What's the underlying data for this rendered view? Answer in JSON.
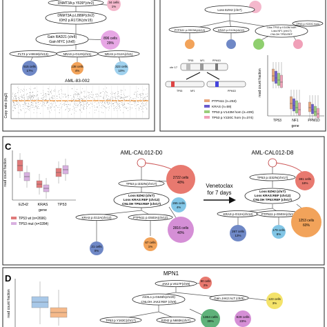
{
  "figure": {
    "panels": {
      "c_label": "C",
      "d_label": "D"
    },
    "top_left": {
      "mut1": "DNMT3A p.Y639*(chr2)",
      "c1": "34 cells",
      "p1": "1%",
      "mut2a": "DNMT3A p.L889P(chr2)",
      "mut2b": "IDH2 p.R172K(chr15)",
      "mut3a": "Gain RAD21 (chr8)",
      "mut3b": "Gain MYC (chr8)",
      "c3": "896 cells",
      "p3": "29%",
      "mut4": "FLT3 p.V491M(chr13)",
      "mut5": "NRAS p.G12S(chr1)",
      "mut6": "NRAS p.G12A(chr1)",
      "c4": "515 cells",
      "p4": "17%",
      "c5": "138 cells",
      "p5": "4%",
      "c6": "323 cells",
      "p6": "10%",
      "sample": "AML-83-002",
      "ylabel": "Copy ratio (log2)"
    },
    "top_right": {
      "mut1": "Loss EZH2 (chr7)",
      "mut2": "PTPN11 p.G503A(chr12)",
      "mut3": "KRAS p.G12A(chr12)",
      "mut4a": "Loss TP53 p.V143M hom",
      "mut4b": "Loss NF1 (chr17)",
      "mut4c": "CNLOH TP53:REF",
      "mut5": "TP53 p.Y220C hom",
      "chr": "chr 17",
      "genes_top": [
        "TP53",
        "NF1",
        "PPM1D"
      ],
      "genes_bottom": [
        "TP53",
        "NF1",
        "PPM1D"
      ],
      "ylabel": "read count fraction",
      "xlabel": "gene",
      "xticks": [
        "TP53",
        "NF1",
        "PPM1D"
      ],
      "legend": [
        {
          "label": "PTPN11 (n=253)",
          "color": "#e8a57a"
        },
        {
          "label": "KRAS (n=59)",
          "color": "#6a5acd"
        },
        {
          "label": "TP53 p.V143M hom (n=409)",
          "color": "#9acd7a"
        },
        {
          "label": "TP53 p.Y220C hom (n=374)",
          "color": "#f0a0b8"
        }
      ]
    },
    "panel_c": {
      "title_d0": "AML-CAL012-D0",
      "title_d8": "AML-CAL012-D8",
      "treatment_a": "Venetoclax",
      "treatment_b": "for 7 days",
      "ylabel": "read count fraction",
      "xlabel": "gene",
      "xticks": [
        "EZH2",
        "KRAS",
        "TP53"
      ],
      "legend": [
        {
          "label": "TP53 wt (n=2696)",
          "color": "#e07a7a"
        },
        {
          "label": "TP53 mut (n=3284)",
          "color": "#d8b0e0"
        }
      ],
      "d0": {
        "m1": "TP53 p.I232N(chr17)",
        "c1": "2722 cells",
        "p1": "40%",
        "m2a": "Loss EZH2 (chr7)",
        "m2b": "Loss KRAS:REF (chr12)",
        "m2c": "CNLOH TP53:REF (chr17)",
        "c2": "265 cells",
        "p2": "4%",
        "m3": "KRAS p.G12A(chr12)",
        "m4": "PTPN11 p.G503A(chr12)",
        "c3": "2816 cells",
        "p3": "40%",
        "c4": "21 cells",
        "p4": "0%",
        "c5": "67 cells",
        "p5": "1%"
      },
      "d8": {
        "m1": "TP53 p.I232N(chr17)",
        "c1": "381 cells",
        "p1": "18%",
        "m2a": "Loss EZH2 (chr7)",
        "m2b": "Loss KRAS:REF (chr12)",
        "m2c": "CNLOH TP53:REF (chr17)",
        "m3": "KRAS p.G12A(chr12)",
        "m4": "PTPN11 p.G503A(chr12)",
        "c3": "1253 cells",
        "p3": "60%",
        "c4": "267 cells",
        "p4": "13%",
        "c5": "179 cells",
        "p5": "8%"
      }
    },
    "panel_d": {
      "title": "MPN1",
      "ylabel": "read count fraction",
      "m1": "JAK2 p.V617F(chr9)",
      "c1": "80 cells",
      "p1": "2%",
      "m2a": "ASXL1 p.G646fs(chr20)",
      "m2b": "CNLOH JAK2:REF (chr9)",
      "m3": "Gain JAK2:ALT (chr9)",
      "c3": "123 cells",
      "p3": "3%",
      "m4": "TP53 p.Y163C(chr17)",
      "m5": "EZH2 p.N693K(chr7)",
      "c4": "1364 cells",
      "p4": "39%",
      "c5": "829 cells",
      "p5": "23%"
    }
  }
}
